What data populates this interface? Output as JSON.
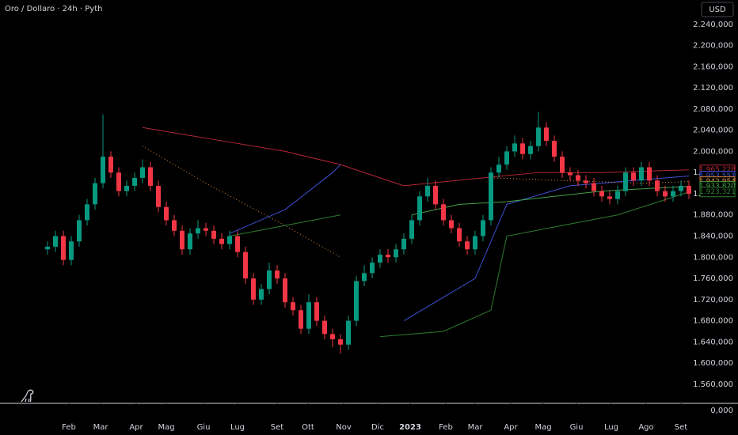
{
  "chart_data": {
    "type": "candlestick",
    "title": "Oro / Dollaro · 24h · Pyth",
    "currency_button": "USD",
    "up_color": "#089981",
    "down_color": "#f23645",
    "grid": false,
    "xlim": [
      -6,
      82
    ],
    "ylim": [
      1524,
      2286
    ],
    "xticks": [
      {
        "value": 2.7,
        "label": "Feb"
      },
      {
        "value": 6.7,
        "label": "Mar"
      },
      {
        "value": 11.2,
        "label": "Apr"
      },
      {
        "value": 15,
        "label": "Mag"
      },
      {
        "value": 19.7,
        "label": "Giu"
      },
      {
        "value": 24,
        "label": "Lug"
      },
      {
        "value": 29,
        "label": "Set"
      },
      {
        "value": 32.9,
        "label": "Ott"
      },
      {
        "value": 37.4,
        "label": "Nov"
      },
      {
        "value": 41.7,
        "label": "Dic"
      },
      {
        "value": 45.8,
        "label": "2023"
      },
      {
        "value": 50.3,
        "label": "Feb"
      },
      {
        "value": 54,
        "label": "Mar"
      },
      {
        "value": 58.5,
        "label": "Apr"
      },
      {
        "value": 62.6,
        "label": "Mag"
      },
      {
        "value": 66.8,
        "label": "Giu"
      },
      {
        "value": 71.2,
        "label": "Lug"
      },
      {
        "value": 75.6,
        "label": "Ago"
      },
      {
        "value": 80,
        "label": "Set"
      }
    ],
    "yticks": [
      {
        "value": 2240,
        "label": "2.240,000"
      },
      {
        "value": 2200,
        "label": "2.200,000"
      },
      {
        "value": 2160,
        "label": "2.160,000"
      },
      {
        "value": 2120,
        "label": "2.120,000"
      },
      {
        "value": 2080,
        "label": "2.080,000"
      },
      {
        "value": 2040,
        "label": "2.040,000"
      },
      {
        "value": 2000,
        "label": "2.000,000"
      },
      {
        "value": 1960,
        "label": "1.960,000"
      },
      {
        "value": 1920,
        "label": "1.920,000"
      },
      {
        "value": 1880,
        "label": "1.880,000"
      },
      {
        "value": 1840,
        "label": "1.840,000"
      },
      {
        "value": 1800,
        "label": "1.800,000"
      },
      {
        "value": 1760,
        "label": "1.760,000"
      },
      {
        "value": 1720,
        "label": "1.720,000"
      },
      {
        "value": 1680,
        "label": "1.680,000"
      },
      {
        "value": 1640,
        "label": "1.640,000"
      },
      {
        "value": 1600,
        "label": "1.600,000"
      },
      {
        "value": 1560,
        "label": "1.560,000"
      }
    ],
    "lower_pane_ticks": [
      {
        "value": 0,
        "label": "0,000"
      }
    ],
    "open": [
      1815,
      1820,
      1840,
      1795,
      1830,
      1870,
      1900,
      1940,
      1990,
      1960,
      1925,
      1935,
      1950,
      1970,
      1935,
      1895,
      1870,
      1850,
      1815,
      1845,
      1855,
      1850,
      1835,
      1825,
      1840,
      1810,
      1760,
      1720,
      1740,
      1775,
      1760,
      1715,
      1700,
      1665,
      1715,
      1680,
      1655,
      1645,
      1635,
      1680,
      1755,
      1770,
      1790,
      1805,
      1800,
      1815,
      1835,
      1870,
      1915,
      1935,
      1900,
      1870,
      1855,
      1830,
      1815,
      1840,
      1870,
      1960,
      1975,
      2000,
      2015,
      1995,
      2010,
      2045,
      2020,
      1990,
      1960,
      1955,
      1945,
      1940,
      1925,
      1915,
      1910,
      1925,
      1960,
      1945,
      1970,
      1945,
      1925,
      1915,
      1925,
      1935
    ],
    "high": [
      1830,
      1850,
      1850,
      1840,
      1880,
      1910,
      1950,
      2070,
      2000,
      1970,
      1945,
      1960,
      1985,
      1980,
      1945,
      1905,
      1880,
      1860,
      1855,
      1870,
      1865,
      1860,
      1845,
      1850,
      1850,
      1820,
      1770,
      1750,
      1790,
      1785,
      1770,
      1725,
      1710,
      1730,
      1725,
      1690,
      1665,
      1655,
      1690,
      1765,
      1785,
      1800,
      1815,
      1815,
      1825,
      1845,
      1880,
      1925,
      1950,
      1945,
      1910,
      1880,
      1865,
      1840,
      1850,
      1880,
      1970,
      1990,
      2010,
      2030,
      2025,
      2020,
      2075,
      2055,
      2030,
      2000,
      1970,
      1965,
      1955,
      1950,
      1935,
      1925,
      1935,
      1970,
      1970,
      1980,
      1980,
      1955,
      1935,
      1935,
      1945,
      1945
    ],
    "low": [
      1805,
      1810,
      1785,
      1785,
      1820,
      1860,
      1890,
      1930,
      1950,
      1915,
      1915,
      1925,
      1940,
      1925,
      1885,
      1860,
      1840,
      1805,
      1805,
      1835,
      1840,
      1825,
      1815,
      1815,
      1800,
      1750,
      1710,
      1710,
      1730,
      1750,
      1705,
      1690,
      1655,
      1655,
      1670,
      1645,
      1630,
      1618,
      1625,
      1670,
      1745,
      1760,
      1780,
      1790,
      1790,
      1805,
      1825,
      1860,
      1905,
      1890,
      1860,
      1845,
      1820,
      1805,
      1805,
      1830,
      1860,
      1950,
      1965,
      1990,
      1985,
      1985,
      2000,
      2010,
      1980,
      1950,
      1945,
      1935,
      1930,
      1915,
      1905,
      1900,
      1900,
      1915,
      1935,
      1935,
      1935,
      1915,
      1905,
      1905,
      1915,
      1910
    ],
    "close": [
      1820,
      1840,
      1795,
      1830,
      1870,
      1900,
      1940,
      1990,
      1960,
      1925,
      1935,
      1950,
      1970,
      1935,
      1895,
      1870,
      1850,
      1815,
      1845,
      1855,
      1850,
      1835,
      1825,
      1840,
      1810,
      1760,
      1720,
      1740,
      1775,
      1760,
      1715,
      1700,
      1665,
      1715,
      1680,
      1655,
      1645,
      1635,
      1680,
      1755,
      1770,
      1790,
      1805,
      1800,
      1815,
      1835,
      1870,
      1915,
      1935,
      1900,
      1870,
      1855,
      1830,
      1815,
      1840,
      1870,
      1960,
      1975,
      2000,
      2015,
      1995,
      2010,
      2045,
      2020,
      1990,
      1960,
      1955,
      1945,
      1940,
      1925,
      1915,
      1910,
      1925,
      1960,
      1945,
      1970,
      1945,
      1925,
      1915,
      1925,
      1935,
      1920
    ],
    "series": [
      {
        "color": "#b22833",
        "dash": false,
        "x": [
          12,
          20,
          30,
          37,
          45,
          55,
          62,
          70,
          81
        ],
        "values": [
          2045,
          2025,
          2000,
          1975,
          1935,
          1950,
          1960,
          1960,
          1965.228
        ],
        "value_labels": [
          null,
          null,
          null,
          null,
          null,
          null,
          null,
          null,
          "1.965,228"
        ]
      },
      {
        "color": "#3f51d5",
        "dash": false,
        "x": [
          23,
          30,
          36,
          37,
          38,
          45,
          54,
          58,
          66,
          74,
          81
        ],
        "values": [
          1845,
          1890,
          1960,
          1975,
          null,
          1680,
          1760,
          1900,
          1935,
          1945,
          1953.551
        ],
        "value_labels": [
          null,
          null,
          null,
          null,
          null,
          null,
          null,
          null,
          null,
          null,
          "1.953,551"
        ]
      },
      {
        "color": "#e08a3c",
        "dash": true,
        "x": [
          12,
          20,
          30,
          37,
          38,
          56,
          65,
          75,
          81
        ],
        "values": [
          2010,
          1940,
          1860,
          1800,
          null,
          1950,
          1945,
          1940,
          1942.954
        ],
        "value_labels": [
          null,
          null,
          null,
          null,
          null,
          null,
          null,
          null,
          "1.942,954"
        ]
      },
      {
        "color": "#43a047",
        "dash": false,
        "x": [
          46,
          52,
          58,
          64,
          70,
          76,
          81
        ],
        "values": [
          1880,
          1900,
          1905,
          1915,
          1925,
          1930,
          1933.82
        ],
        "value_labels": [
          null,
          null,
          null,
          null,
          null,
          null,
          "1.933,820"
        ]
      },
      {
        "color": "#2e7d32",
        "dash": false,
        "x": [
          23,
          30,
          37,
          38,
          42,
          50,
          56,
          58,
          65,
          72,
          81
        ],
        "values": [
          1840,
          1860,
          1880,
          null,
          1650,
          1660,
          1700,
          1840,
          1860,
          1880,
          1923.321
        ],
        "value_labels": [
          null,
          null,
          null,
          null,
          null,
          null,
          null,
          null,
          null,
          null,
          "1.923,321"
        ]
      }
    ]
  }
}
